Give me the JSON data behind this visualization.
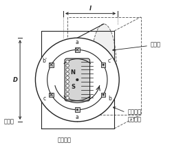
{
  "labels": {
    "koteishi": "固定子",
    "kaimaki": "界磁\n巻線",
    "denki": "電機巻線\n（導体）",
    "kaiten_ko": "回転子",
    "kaiten_ho": "回転方向",
    "D_label": "D",
    "l_label": "l",
    "N_label": "N",
    "S_label": "S"
  },
  "lc": "#222222",
  "dc": "#666666",
  "outer_r": 0.6,
  "inner_r": 0.43,
  "dx3d": 0.38,
  "dy3d": 0.2
}
